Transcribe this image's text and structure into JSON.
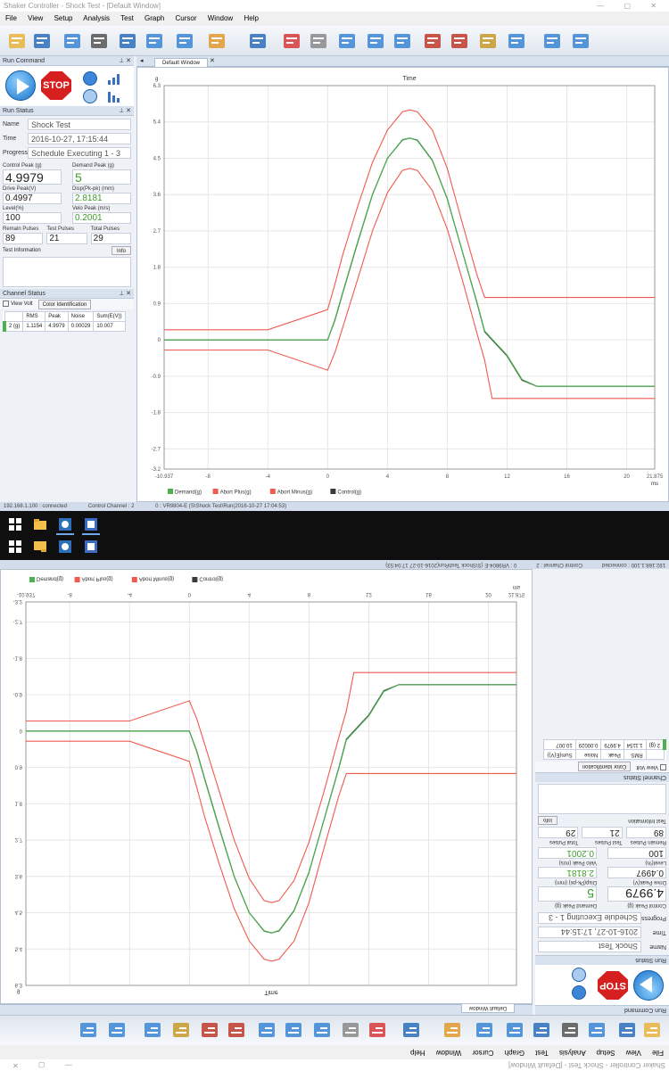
{
  "window": {
    "title": "Shaker Controller - Shock Test - [Default Window]"
  },
  "menu": [
    "File",
    "View",
    "Setup",
    "Analysis",
    "Test",
    "Graph",
    "Cursor",
    "Window",
    "Help"
  ],
  "toolbar": {
    "icons": [
      "open-folder-icon",
      "save-icon",
      "refresh-icon",
      "print-icon",
      "image-icon",
      "export-icon",
      "settings-icon",
      "edit-icon",
      "monitor-icon",
      "delete-icon",
      "hand-icon",
      "copy-icon",
      "mail-icon",
      "close-window-icon",
      "bar-chart-icon",
      "waveform-icon",
      "cursor-icon",
      "line-chart-icon",
      "flag-icon",
      "chat-icon"
    ]
  },
  "panels": {
    "run_command": "Run Command",
    "run_status": "Run Status",
    "stop_label": "STOP",
    "test_information": "Test Information",
    "info_button": "Info",
    "channel_status": "Channel Status",
    "view_volt": "View Volt",
    "color_identification": "Color Identification"
  },
  "status_top": {
    "name_label": "Name",
    "name": "Shock Test",
    "time_label": "Time",
    "time": "2016-10-27, 17:15:44",
    "progress_label": "Progress",
    "progress": "Schedule Executing 1 - 3",
    "control_peak_label": "Control Peak (g)",
    "control_peak": "4.9979",
    "demand_peak_label": "Demand Peak (g)",
    "demand_peak": "5",
    "drive_peak_label": "Drive Peak(V)",
    "drive_peak": "0.4997",
    "disp_peak_label": "Disp(Pk-pk) (mm)",
    "disp_peak": "2.8181",
    "level_label": "Level(%)",
    "level": "100",
    "velo_peak_label": "Velo Peak (m/s)",
    "velo_peak": "0.2001",
    "remain_label": "Remain Pulses",
    "remain": "89",
    "test_pulses_label": "Test Pulses",
    "test_pulses": "21",
    "total_label": "Total Pulses",
    "total": "29"
  },
  "status_bottom": {
    "name": "Shock Test",
    "time": "2016-10-27, 17:15:44",
    "progress": "Schedule Executing 1 - 3",
    "control_peak": "4.9979",
    "demand_peak": "5",
    "drive_peak": "0.4997",
    "disp_peak": "2.8181",
    "level": "100",
    "velo_peak": "0.2001",
    "remain": "89",
    "test_pulses": "21",
    "total": "29"
  },
  "channel_table": {
    "headers": [
      "",
      "RMS",
      "Peak",
      "Noise",
      "Sum(E(V))"
    ],
    "row": [
      "2 (g)",
      "1.1154",
      "4.9979",
      "0.00029",
      "10.007"
    ]
  },
  "channel_table_bottom": {
    "row": [
      "2 (g)",
      "1.1154",
      "4.9979",
      "0.00029",
      "10.007"
    ]
  },
  "tab": {
    "label": "Default Window"
  },
  "statusbar": [
    "192.168.1.100 : connected",
    "Control Channel : 2",
    "0 : VR9804-E (S\\Shock Test\\Run(2016-10-27 17:04:53)"
  ],
  "chart_data": {
    "type": "line",
    "title": "Time",
    "xlabel": "ms",
    "ylabel": "g",
    "xlim": [
      -10.937,
      21.875
    ],
    "ylim": [
      -3.2,
      6.3
    ],
    "xticks": [
      "-10.937",
      "-8",
      "-4",
      "0",
      "4",
      "8",
      "12",
      "16",
      "20",
      "21.875"
    ],
    "yticks": [
      "6.3",
      "5.4",
      "4.5",
      "3.6",
      "2.7",
      "1.8",
      "0.9",
      "0",
      "-0.9",
      "-1.8",
      "-2.7",
      "-3.2"
    ],
    "legend_position": "bottom",
    "grid": true,
    "colors": {
      "demand": "#3a3a3a",
      "abort": "#f05a50",
      "control": "#4caf50"
    },
    "series": [
      {
        "name": "Demand(g)",
        "points": [
          [
            -10.937,
            0
          ],
          [
            -4,
            0
          ],
          [
            0,
            0
          ],
          [
            0.5,
            0.5
          ],
          [
            1,
            1.15
          ],
          [
            2,
            2.4
          ],
          [
            3,
            3.6
          ],
          [
            4,
            4.5
          ],
          [
            5,
            4.95
          ],
          [
            5.5,
            5
          ],
          [
            6,
            4.95
          ],
          [
            7,
            4.45
          ],
          [
            8,
            3.5
          ],
          [
            9,
            2.2
          ],
          [
            10,
            0.9
          ],
          [
            10.5,
            0.2
          ],
          [
            11,
            0
          ],
          [
            12,
            -0.4
          ],
          [
            13,
            -1
          ],
          [
            14,
            -1.15
          ],
          [
            21.875,
            -1.15
          ]
        ]
      },
      {
        "name": "Abort Plus(g)",
        "points": [
          [
            -10.937,
            0.25
          ],
          [
            -4,
            0.25
          ],
          [
            0,
            0.75
          ],
          [
            0.5,
            1.4
          ],
          [
            1,
            2.1
          ],
          [
            2,
            3.3
          ],
          [
            3,
            4.4
          ],
          [
            4,
            5.2
          ],
          [
            5,
            5.65
          ],
          [
            5.5,
            5.7
          ],
          [
            6,
            5.65
          ],
          [
            7,
            5.2
          ],
          [
            8,
            4.25
          ],
          [
            9,
            2.9
          ],
          [
            10,
            1.6
          ],
          [
            10.5,
            1.05
          ],
          [
            21.875,
            1.05
          ]
        ]
      },
      {
        "name": "Abort Minus(g)",
        "points": [
          [
            -10.937,
            -0.25
          ],
          [
            -4,
            -0.25
          ],
          [
            0,
            -0.75
          ],
          [
            0.5,
            -0.3
          ],
          [
            1,
            0.3
          ],
          [
            2,
            1.5
          ],
          [
            3,
            2.7
          ],
          [
            4,
            3.65
          ],
          [
            5,
            4.2
          ],
          [
            5.5,
            4.25
          ],
          [
            6,
            4.2
          ],
          [
            7,
            3.7
          ],
          [
            8,
            2.75
          ],
          [
            9,
            1.5
          ],
          [
            10,
            0.15
          ],
          [
            10.5,
            -0.5
          ],
          [
            11,
            -1.45
          ],
          [
            21.875,
            -1.45
          ]
        ]
      },
      {
        "name": "Control(g)",
        "points": [
          [
            -10.937,
            0
          ],
          [
            -4,
            0
          ],
          [
            0,
            0
          ],
          [
            0.5,
            0.52
          ],
          [
            1,
            1.17
          ],
          [
            2,
            2.42
          ],
          [
            3,
            3.61
          ],
          [
            4,
            4.5
          ],
          [
            5,
            4.96
          ],
          [
            5.5,
            5
          ],
          [
            6,
            4.94
          ],
          [
            7,
            4.44
          ],
          [
            8,
            3.49
          ],
          [
            9,
            2.2
          ],
          [
            10,
            0.92
          ],
          [
            10.5,
            0.22
          ],
          [
            11,
            0.02
          ],
          [
            12,
            -0.38
          ],
          [
            13,
            -0.98
          ],
          [
            14,
            -1.15
          ],
          [
            21.875,
            -1.15
          ]
        ]
      }
    ]
  }
}
